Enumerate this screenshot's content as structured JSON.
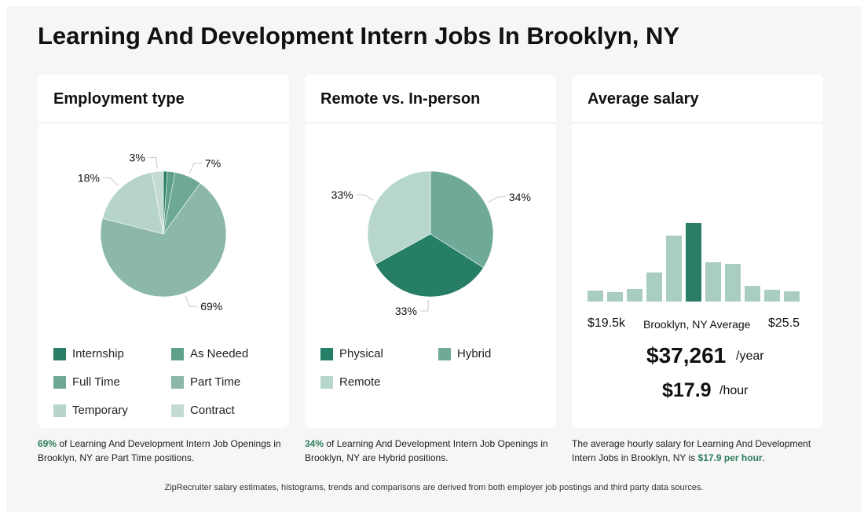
{
  "page": {
    "title": "Learning And Development Intern Jobs In Brooklyn, NY"
  },
  "employment": {
    "title": "Employment type",
    "caption_highlight": "69%",
    "caption_text": " of Learning And Development Intern Job Openings in Brooklyn, NY are Part Time positions.",
    "legend": [
      "Internship",
      "As Needed",
      "Full Time",
      "Part Time",
      "Temporary",
      "Contract"
    ]
  },
  "remote": {
    "title": "Remote vs. In-person",
    "caption_highlight": "34%",
    "caption_text": " of Learning And Development Intern Job Openings in Brooklyn, NY are Hybrid positions.",
    "legend": [
      "Physical",
      "Hybrid",
      "Remote"
    ]
  },
  "salary": {
    "title": "Average salary",
    "min_label": "$19.5k",
    "avg_label": "Brooklyn, NY Average",
    "max_label": "$25.5",
    "yearly": "$37,261",
    "yearly_unit": "/year",
    "hourly": "$17.9",
    "hourly_unit": "/hour",
    "caption_text": "The average hourly salary for Learning And Development Intern Jobs in Brooklyn, NY is ",
    "caption_highlight": "$17.9 per hour",
    "caption_end": "."
  },
  "footer": {
    "text": "ZipRecruiter salary estimates, histograms, trends and comparisons are derived from both employer job postings and third party data sources."
  },
  "chart_data": [
    {
      "type": "pie",
      "title": "Employment type",
      "slices": [
        {
          "name": "Internship",
          "value": 1,
          "label": "",
          "color": "#2a7d66"
        },
        {
          "name": "As Needed",
          "value": 2,
          "label": "",
          "color": "#5ea08b"
        },
        {
          "name": "Full Time",
          "value": 7,
          "label": "7%",
          "color": "#6ea897"
        },
        {
          "name": "Part Time",
          "value": 69,
          "label": "69%",
          "color": "#8cb8a9"
        },
        {
          "name": "Temporary",
          "value": 18,
          "label": "18%",
          "color": "#b6d4ca"
        },
        {
          "name": "Contract",
          "value": 3,
          "label": "3%",
          "color": "#c3dbd3"
        }
      ]
    },
    {
      "type": "pie",
      "title": "Remote vs. In-person",
      "slices": [
        {
          "name": "Hybrid",
          "value": 34,
          "label": "34%",
          "color": "#6faa98"
        },
        {
          "name": "Physical",
          "value": 33,
          "label": "33%",
          "color": "#267e66"
        },
        {
          "name": "Remote",
          "value": 33,
          "label": "33%",
          "color": "#b7d6cc"
        }
      ]
    },
    {
      "type": "bar",
      "title": "Average salary",
      "values": [
        14,
        12,
        16,
        37,
        84,
        100,
        50,
        48,
        20,
        15,
        13
      ],
      "highlight_index": 5,
      "color": "#a9cdc0",
      "highlight_color": "#2a7d66"
    }
  ]
}
